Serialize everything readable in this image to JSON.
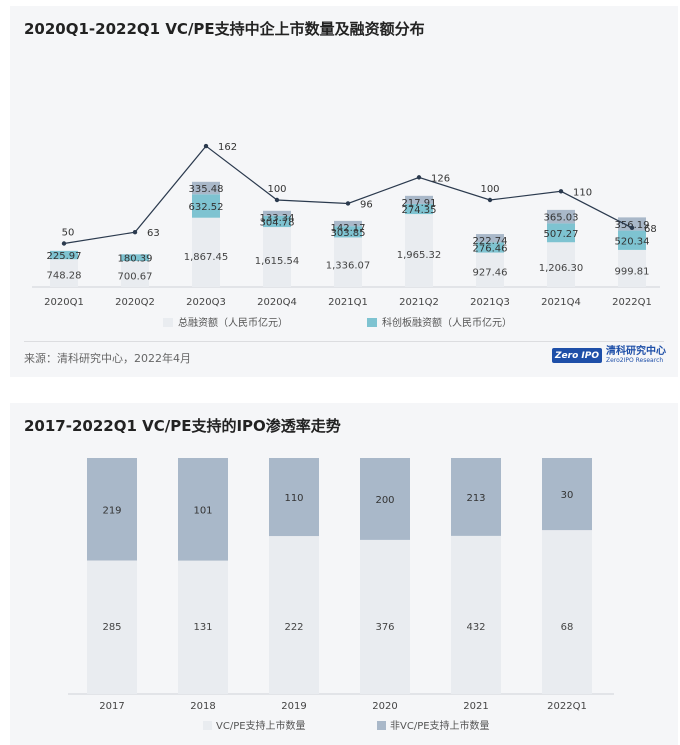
{
  "chart_data": [
    {
      "type": "bar",
      "title": "2020Q1-2022Q1 VC/PE支持中企上市数量及融资额分布",
      "categories": [
        "2020Q1",
        "2020Q2",
        "2020Q3",
        "2020Q4",
        "2021Q1",
        "2021Q2",
        "2021Q3",
        "2021Q4",
        "2022Q1"
      ],
      "series": [
        {
          "name": "总融资额（人民币亿元）",
          "values": [
            748.28,
            700.67,
            1867.45,
            1615.54,
            1336.07,
            1965.32,
            927.46,
            1206.3,
            999.81
          ]
        },
        {
          "name": "科创板融资额（人民币亿元）",
          "values": [
            225.97,
            180.39,
            632.52,
            304.78,
            303.85,
            274.35,
            276.46,
            507.27,
            520.34
          ]
        },
        {
          "values": [
            null,
            null,
            335.48,
            133.34,
            142.17,
            217.91,
            222.74,
            365.03,
            356.19
          ]
        },
        {
          "type": "line",
          "values": [
            50,
            63,
            162,
            100,
            96,
            126,
            100,
            110,
            68
          ]
        }
      ],
      "labels": {
        "s0": [
          "748.28",
          "700.67",
          "1,867.45",
          "1,615.54",
          "1,336.07",
          "1,965.32",
          "927.46",
          "1,206.30",
          "999.81"
        ],
        "s1": [
          "225.97",
          "180.39",
          "632.52",
          "304.78",
          "303.85",
          "274.35",
          "276.46",
          "507.27",
          "520.34"
        ],
        "s2": [
          "",
          "",
          "335.48",
          "133.34",
          "142.17",
          "217.91",
          "222.74",
          "365.03",
          "356.19"
        ],
        "line": [
          "50",
          "63",
          "162",
          "100",
          "96",
          "126",
          "100",
          "110",
          "68"
        ]
      },
      "legend_placement": "bottom",
      "grid": false
    },
    {
      "type": "bar",
      "title": "2017-2022Q1 VC/PE支持的IPO渗透率走势",
      "categories": [
        "2017",
        "2018",
        "2019",
        "2020",
        "2021",
        "2022Q1"
      ],
      "series": [
        {
          "name": "VC/PE支持上市数量",
          "values": [
            285,
            131,
            222,
            376,
            432,
            68
          ]
        },
        {
          "name": "非VC/PE支持上市数量",
          "values": [
            219,
            101,
            110,
            200,
            213,
            30
          ]
        }
      ],
      "stacking": "percent",
      "legend_placement": "bottom",
      "grid": false
    }
  ],
  "source": "来源：清科研究中心，2022年4月",
  "logo": {
    "box": "Zero IPO",
    "name_cn": "清科研究中心",
    "name_en": "Zero2IPO Research"
  },
  "colors": {
    "total": "#e9ecf0",
    "kcb": "#7ec3d1",
    "other": "#a9b8c9",
    "line": "#2b3a4e",
    "non_vc": "#a9b8c9",
    "vc": "#e9ecf0"
  }
}
